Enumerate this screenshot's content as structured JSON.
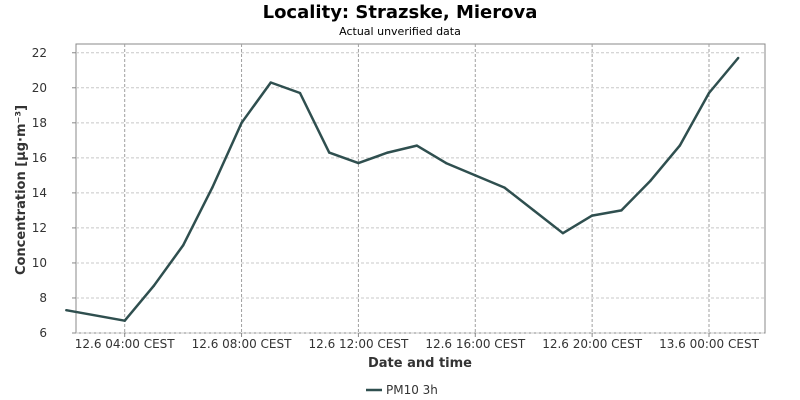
{
  "chart_data": {
    "type": "line",
    "title": "Locality: Strazske, Mierova",
    "subtitle": "Actual unverified data",
    "xlabel": "Date and time",
    "ylabel": "Concentration [µg·m⁻³]",
    "ylim": [
      6,
      22.5
    ],
    "yticks": [
      6,
      8,
      10,
      12,
      14,
      16,
      18,
      20,
      22
    ],
    "xlim": [
      "2024-06-12 02:20",
      "2024-06-13 01:55"
    ],
    "xticks": [
      {
        "t": "2024-06-12 04:00",
        "label": "12.6 04:00 CEST"
      },
      {
        "t": "2024-06-12 08:00",
        "label": "12.6 08:00 CEST"
      },
      {
        "t": "2024-06-12 12:00",
        "label": "12.6 12:00 CEST"
      },
      {
        "t": "2024-06-12 16:00",
        "label": "12.6 16:00 CEST"
      },
      {
        "t": "2024-06-12 20:00",
        "label": "12.6 20:00 CEST"
      },
      {
        "t": "2024-06-13 00:00",
        "label": "13.6 00:00 CEST"
      }
    ],
    "grid": true,
    "legend_position": "bottom-center",
    "series": [
      {
        "name": "PM10 3h",
        "color": "#2f4f4f",
        "points": [
          [
            "2024-06-12 02:00",
            7.3
          ],
          [
            "2024-06-12 04:00",
            6.7
          ],
          [
            "2024-06-12 05:00",
            8.7
          ],
          [
            "2024-06-12 06:00",
            11.0
          ],
          [
            "2024-06-12 07:00",
            14.3
          ],
          [
            "2024-06-12 08:00",
            18.0
          ],
          [
            "2024-06-12 09:00",
            20.3
          ],
          [
            "2024-06-12 10:00",
            19.7
          ],
          [
            "2024-06-12 11:00",
            16.3
          ],
          [
            "2024-06-12 12:00",
            15.7
          ],
          [
            "2024-06-12 13:00",
            16.3
          ],
          [
            "2024-06-12 14:00",
            16.7
          ],
          [
            "2024-06-12 15:00",
            15.7
          ],
          [
            "2024-06-12 16:00",
            15.0
          ],
          [
            "2024-06-12 17:00",
            14.3
          ],
          [
            "2024-06-12 18:00",
            13.0
          ],
          [
            "2024-06-12 19:00",
            11.7
          ],
          [
            "2024-06-12 20:00",
            12.7
          ],
          [
            "2024-06-12 21:00",
            13.0
          ],
          [
            "2024-06-12 22:00",
            14.7
          ],
          [
            "2024-06-12 23:00",
            16.7
          ],
          [
            "2024-06-13 00:00",
            19.7
          ],
          [
            "2024-06-13 01:00",
            21.7
          ]
        ]
      }
    ]
  }
}
